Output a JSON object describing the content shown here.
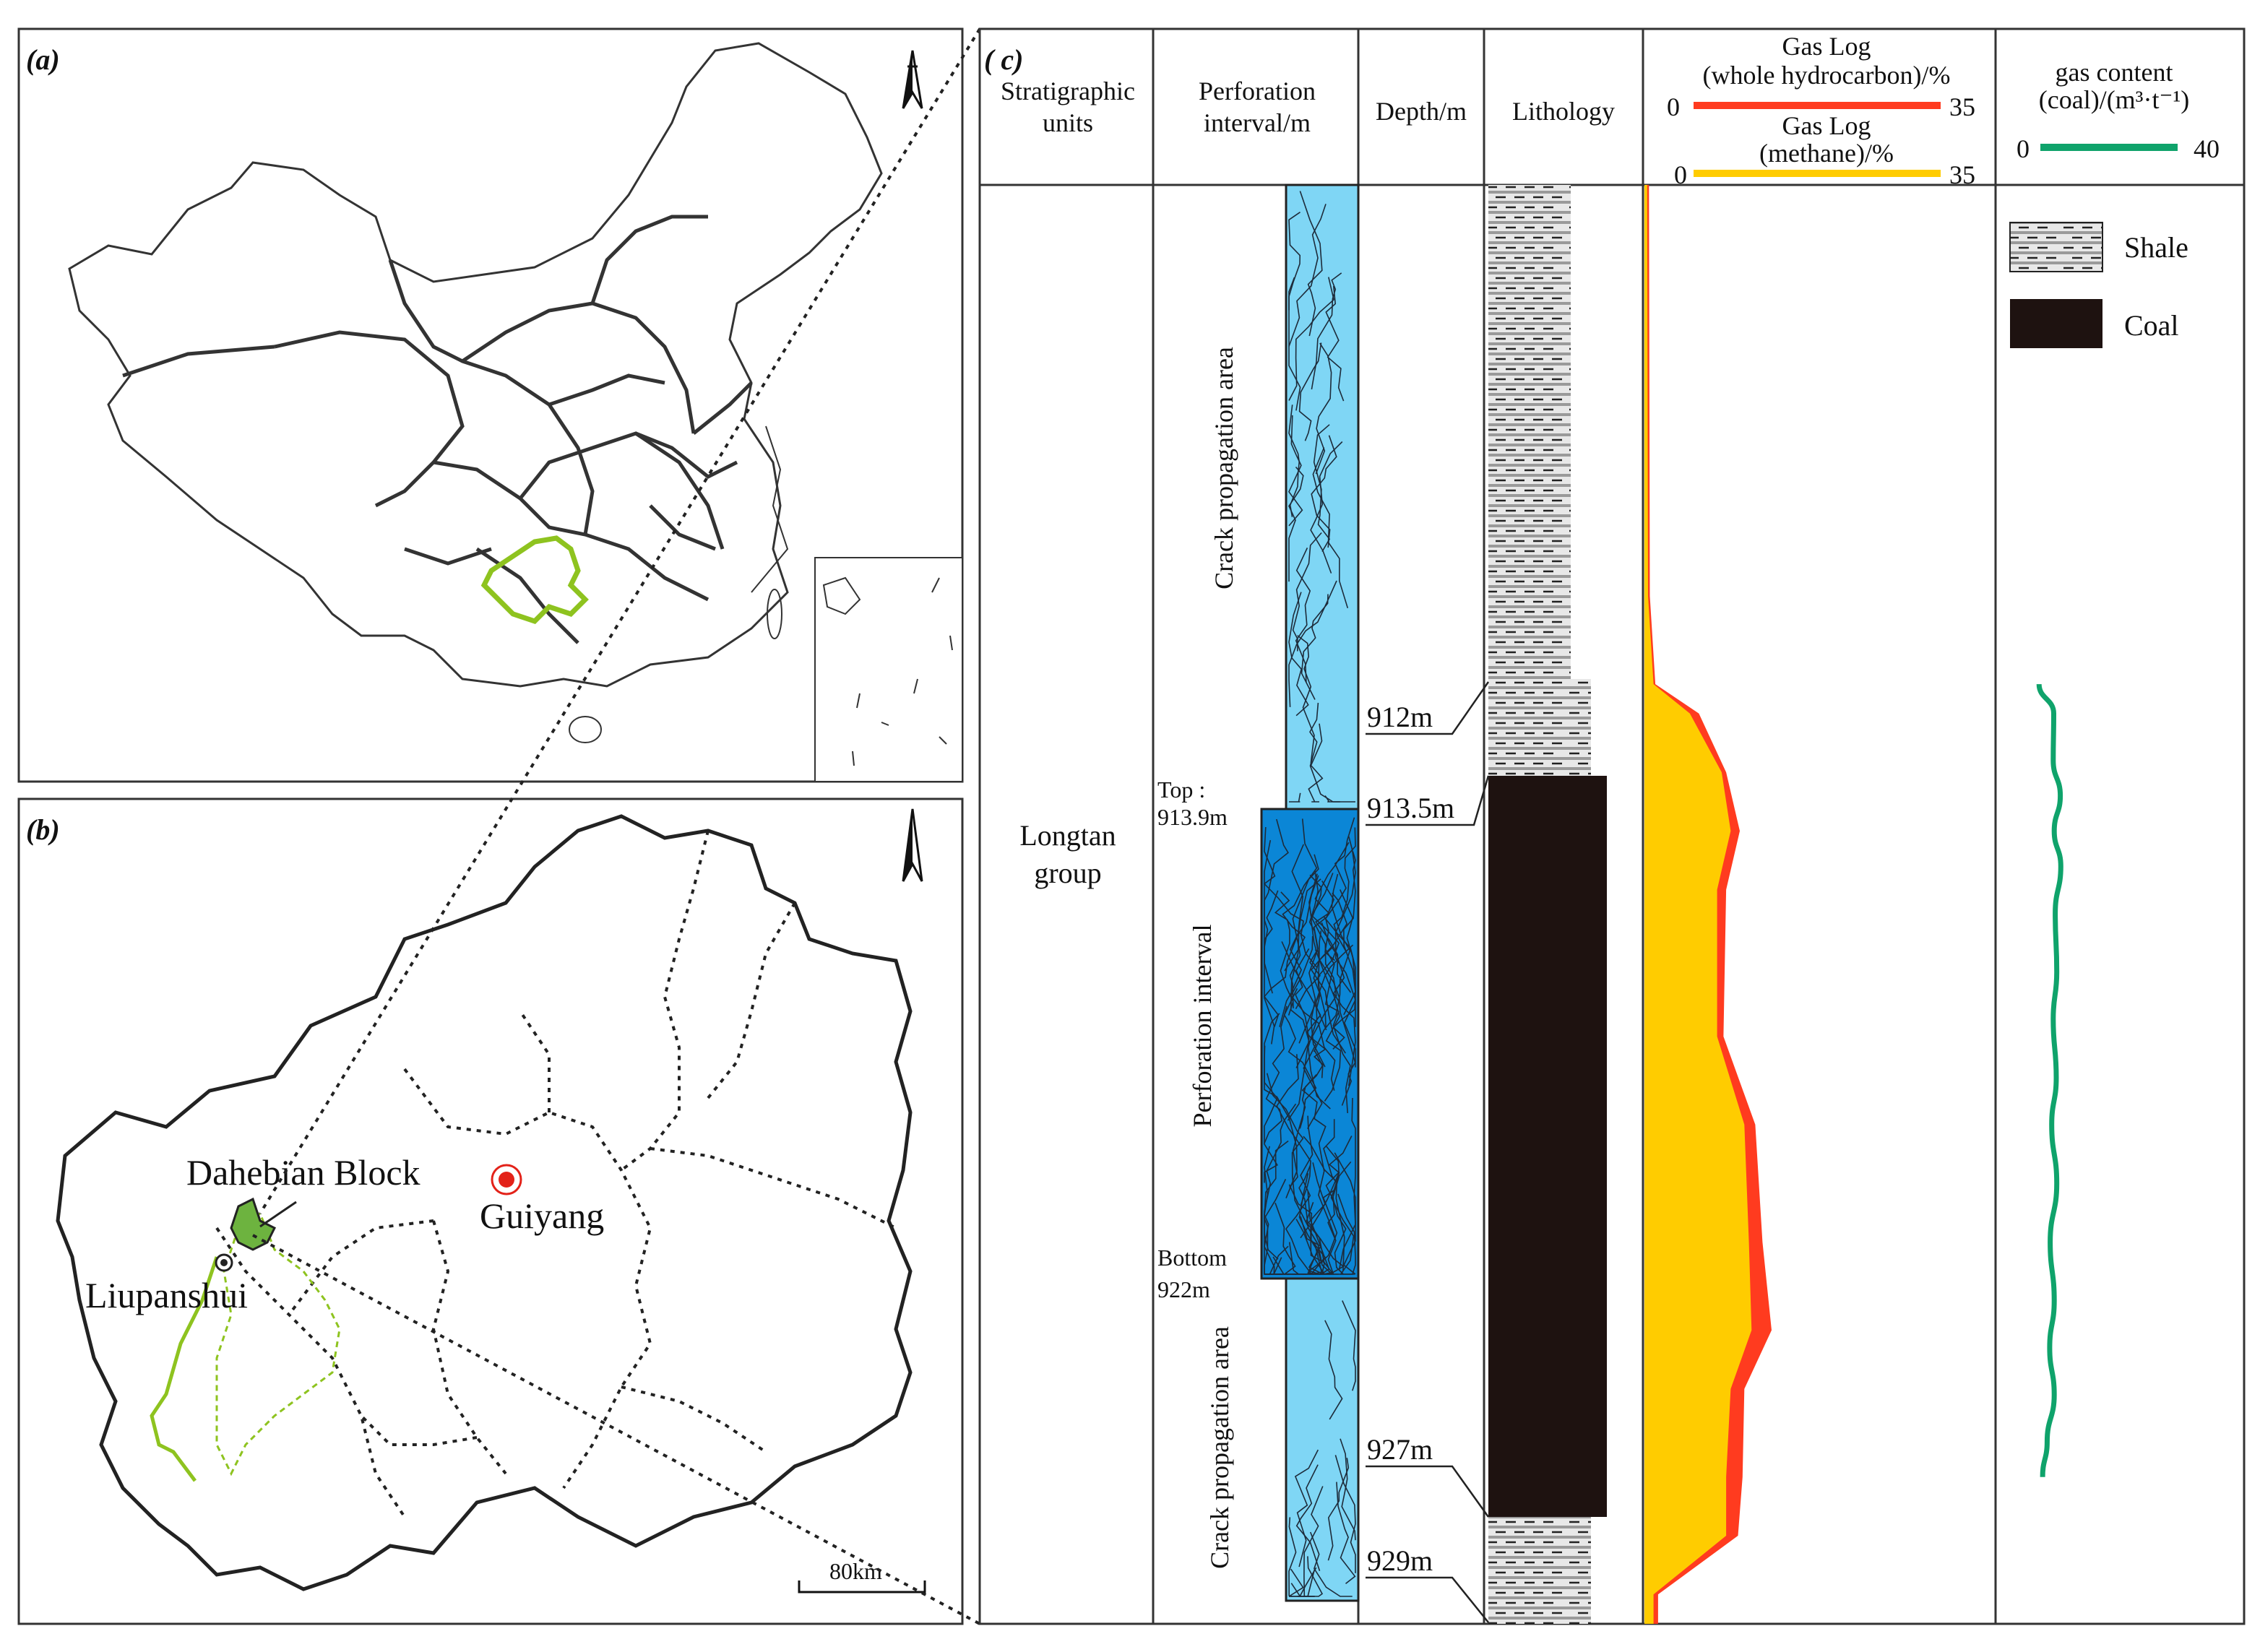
{
  "panels": {
    "a": {
      "tag": "(a)"
    },
    "b": {
      "tag": "(b)",
      "labels": {
        "block": "Dahebian Block",
        "city_capital": "Guiyang",
        "city": "Liupanshui",
        "scale": "80km"
      }
    },
    "c": {
      "tag": "( c)",
      "headers": {
        "strat": [
          "Stratigraphic",
          "units"
        ],
        "perf": [
          "Perforation",
          "interval/m"
        ],
        "depth": "Depth/m",
        "lith": "Lithology",
        "gas1": [
          "Gas Log",
          "(whole hydrocarbon)/%"
        ],
        "gas2": [
          "Gas Log",
          "(methane)/%"
        ],
        "gas3": [
          "gas content",
          "(coal)/(m³·t⁻¹)"
        ]
      },
      "scales": {
        "whole_min": "0",
        "whole_max": "35",
        "methane_min": "0",
        "methane_max": "35",
        "gas_content_min": "0",
        "gas_content_max": "40"
      },
      "strat_unit": [
        "Longtan",
        "group"
      ],
      "perforation": {
        "top_label": [
          "Top :",
          "913.9m"
        ],
        "bottom_label": [
          "Bottom",
          "922m"
        ],
        "upper_zone": "Crack propagation area",
        "middle_zone": "Perforation interval",
        "lower_zone": "Crack propagation area"
      },
      "depth_marks": [
        "912m",
        "913.5m",
        "927m",
        "929m"
      ],
      "legend": {
        "shale": "Shale",
        "coal": "Coal"
      },
      "colors": {
        "whole_hydrocarbon": "#ff3b1f",
        "methane": "#ffcc00",
        "gas_content": "#0fa36b",
        "coal": "#1e1210",
        "perf_light": "#7fd6f5",
        "perf_dark": "#0b86d6",
        "guizhou_outline": "#8ec31f"
      },
      "log_data": {
        "depth_axis": "top of track = 905 m, bottom of track = 929.5 m",
        "whole_hydrocarbon": [
          {
            "depth": 905.0,
            "value": 0.5
          },
          {
            "depth": 912.0,
            "value": 0.6
          },
          {
            "depth": 913.5,
            "value": 1.2
          },
          {
            "depth": 914.0,
            "value": 6.0
          },
          {
            "depth": 915.0,
            "value": 9.0
          },
          {
            "depth": 916.0,
            "value": 10.5
          },
          {
            "depth": 917.0,
            "value": 9.0
          },
          {
            "depth": 919.5,
            "value": 8.7
          },
          {
            "depth": 921.0,
            "value": 12.2
          },
          {
            "depth": 923.0,
            "value": 13.0
          },
          {
            "depth": 924.5,
            "value": 14.0
          },
          {
            "depth": 925.5,
            "value": 11.0
          },
          {
            "depth": 927.0,
            "value": 10.8
          },
          {
            "depth": 928.0,
            "value": 10.3
          },
          {
            "depth": 929.0,
            "value": 1.5
          }
        ],
        "methane": [
          {
            "depth": 905.0,
            "value": 0.3
          },
          {
            "depth": 912.0,
            "value": 0.4
          },
          {
            "depth": 913.5,
            "value": 1.0
          },
          {
            "depth": 914.0,
            "value": 5.0
          },
          {
            "depth": 915.0,
            "value": 8.5
          },
          {
            "depth": 916.0,
            "value": 9.5
          },
          {
            "depth": 917.0,
            "value": 8.0
          },
          {
            "depth": 919.5,
            "value": 8.0
          },
          {
            "depth": 921.0,
            "value": 11.0
          },
          {
            "depth": 923.0,
            "value": 11.5
          },
          {
            "depth": 924.5,
            "value": 11.8
          },
          {
            "depth": 925.5,
            "value": 9.5
          },
          {
            "depth": 927.0,
            "value": 9.0
          },
          {
            "depth": 928.0,
            "value": 9.0
          },
          {
            "depth": 929.0,
            "value": 1.0
          }
        ],
        "gas_content": [
          {
            "depth": 913.5,
            "value": 4.6
          },
          {
            "depth": 914.0,
            "value": 7.5
          },
          {
            "depth": 914.8,
            "value": 7.4
          },
          {
            "depth": 915.4,
            "value": 8.8
          },
          {
            "depth": 916.0,
            "value": 7.6
          },
          {
            "depth": 916.6,
            "value": 8.9
          },
          {
            "depth": 917.4,
            "value": 7.8
          },
          {
            "depth": 918.4,
            "value": 8.1
          },
          {
            "depth": 919.2,
            "value": 7.4
          },
          {
            "depth": 920.2,
            "value": 8.0
          },
          {
            "depth": 921.0,
            "value": 7.1
          },
          {
            "depth": 922.0,
            "value": 8.1
          },
          {
            "depth": 923.0,
            "value": 6.8
          },
          {
            "depth": 924.0,
            "value": 7.6
          },
          {
            "depth": 924.8,
            "value": 6.7
          },
          {
            "depth": 925.6,
            "value": 7.6
          },
          {
            "depth": 926.4,
            "value": 6.2
          },
          {
            "depth": 927.0,
            "value": 5.3
          }
        ]
      }
    }
  }
}
